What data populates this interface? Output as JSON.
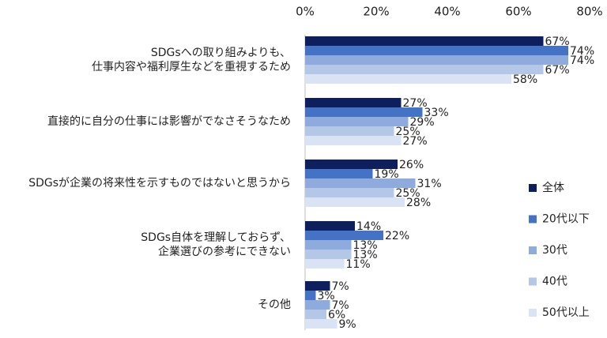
{
  "chart_data": {
    "type": "bar",
    "orientation": "horizontal",
    "x_axis_position": "top",
    "xlim": [
      0,
      80
    ],
    "x_ticks": [
      0,
      20,
      40,
      60,
      80
    ],
    "x_tick_labels": [
      "0%",
      "20%",
      "40%",
      "60%",
      "80%"
    ],
    "grid": false,
    "legend_position": "right",
    "categories": [
      [
        "SDGsへの取り組みよりも、",
        "仕事内容や福利厚生などを重視するため"
      ],
      [
        "直接的に自分の仕事には影響がでなさそうなため"
      ],
      [
        "SDGsが企業の将来性を示すものではないと思うから"
      ],
      [
        "SDGs自体を理解しておらず、",
        "企業選びの参考にできない"
      ],
      [
        "その他"
      ]
    ],
    "series": [
      {
        "name": "全体",
        "color": "#0d1f5c",
        "values": [
          67,
          27,
          26,
          14,
          7
        ]
      },
      {
        "name": "20代以下",
        "color": "#4472c4",
        "values": [
          74,
          33,
          19,
          22,
          3
        ]
      },
      {
        "name": "30代",
        "color": "#8faadc",
        "values": [
          74,
          29,
          31,
          13,
          7
        ]
      },
      {
        "name": "40代",
        "color": "#b4c7e7",
        "values": [
          67,
          25,
          25,
          13,
          6
        ]
      },
      {
        "name": "50代以上",
        "color": "#dae3f3",
        "values": [
          58,
          27,
          28,
          11,
          9
        ]
      }
    ],
    "value_suffix": "%"
  }
}
